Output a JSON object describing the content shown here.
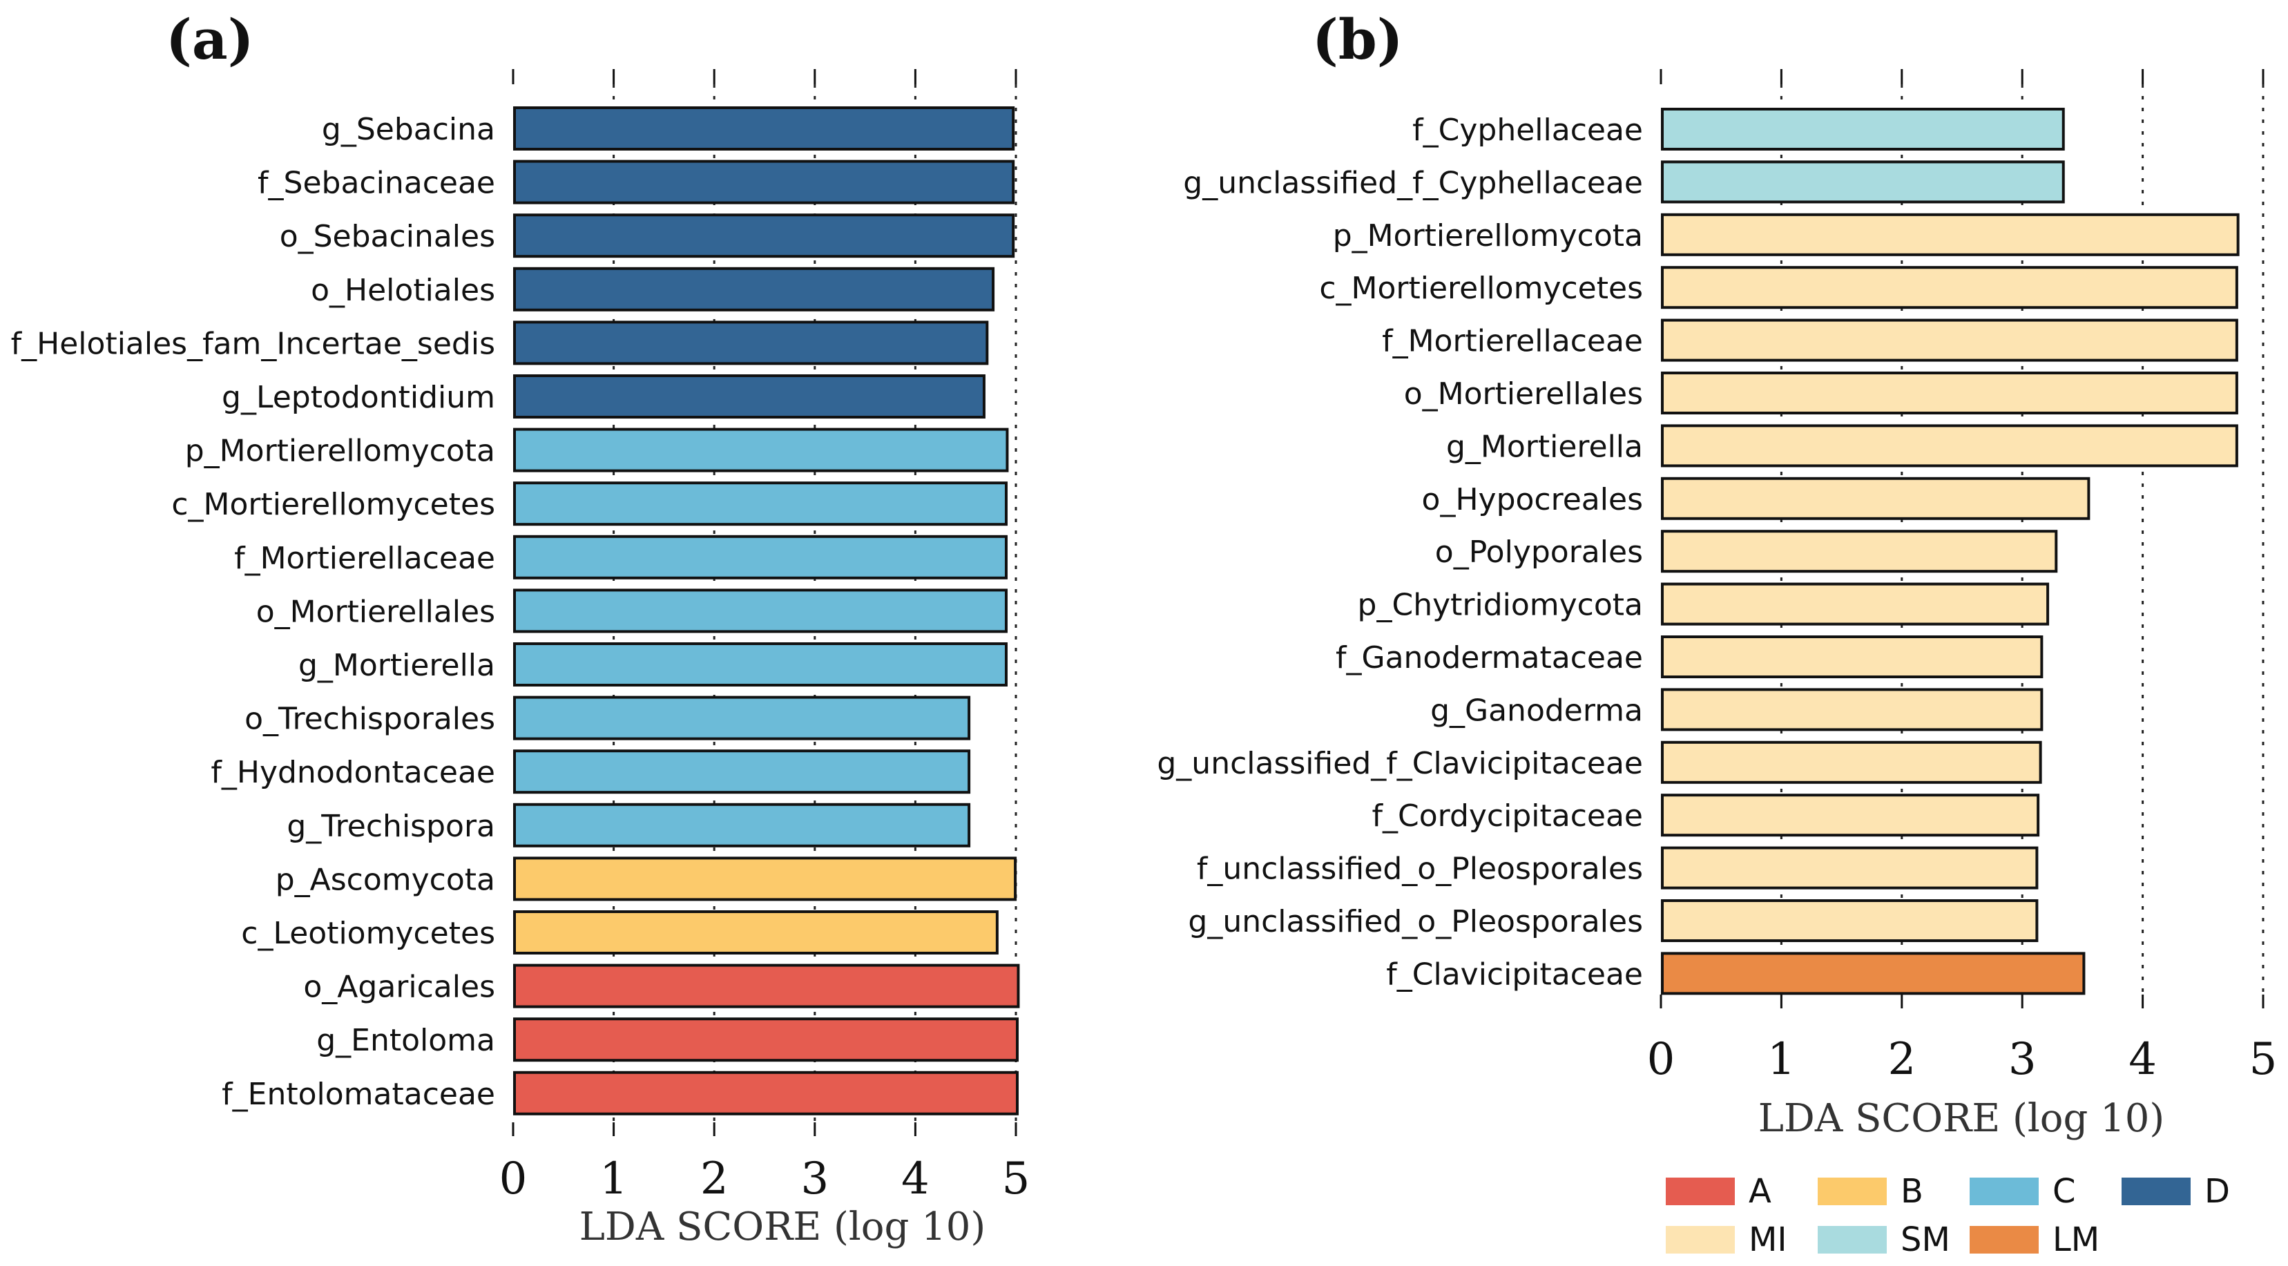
{
  "chart_data": [
    {
      "type": "bar",
      "orientation": "horizontal",
      "panel_label": "(a)",
      "xlabel": "LDA SCORE (log 10)",
      "xlim": [
        0,
        5
      ],
      "xticks": [
        "0",
        "1",
        "2",
        "3",
        "4",
        "5"
      ],
      "grid": "vertical dotted",
      "categories": [
        "g_Sebacina",
        "f_Sebacinaceae",
        "o_Sebacinales",
        "o_Helotiales",
        "f_Helotiales_fam_Incertae_sedis",
        "g_Leptodontidium",
        "p_Mortierellomycota",
        "c_Mortierellomycetes",
        "f_Mortierellaceae",
        "o_Mortierellales",
        "g_Mortierella",
        "o_Trechisporales",
        "f_Hydnodontaceae",
        "g_Trechispora",
        "p_Ascomycota",
        "c_Leotiomycetes",
        "o_Agaricales",
        "g_Entoloma",
        "f_Entolomataceae"
      ],
      "values": [
        4.96,
        4.96,
        4.96,
        4.76,
        4.7,
        4.67,
        4.9,
        4.89,
        4.89,
        4.89,
        4.89,
        4.52,
        4.52,
        4.52,
        4.98,
        4.8,
        5.01,
        5.0,
        5.0
      ],
      "groups": [
        "D",
        "D",
        "D",
        "D",
        "D",
        "D",
        "C",
        "C",
        "C",
        "C",
        "C",
        "C",
        "C",
        "C",
        "B",
        "B",
        "A",
        "A",
        "A"
      ]
    },
    {
      "type": "bar",
      "orientation": "horizontal",
      "panel_label": "(b)",
      "xlabel": "LDA SCORE (log 10)",
      "xlim": [
        0,
        5
      ],
      "xticks": [
        "0",
        "1",
        "2",
        "3",
        "4",
        "5"
      ],
      "grid": "vertical dotted",
      "categories": [
        "f_Cyphellaceae",
        "g_unclassified_f_Cyphellaceae",
        "p_Mortierellomycota",
        "c_Mortierellomycetes",
        "f_Mortierellaceae",
        "o_Mortierellales",
        "g_Mortierella",
        "o_Hypocreales",
        "o_Polyporales",
        "p_Chytridiomycota",
        "f_Ganodermataceae",
        "g_Ganoderma",
        "g_unclassified_f_Clavicipitaceae",
        "f_Cordycipitaceae",
        "f_unclassified_o_Pleosporales",
        "g_unclassified_o_Pleosporales",
        "f_Clavicipitaceae"
      ],
      "values": [
        3.33,
        3.33,
        4.78,
        4.77,
        4.77,
        4.77,
        4.77,
        3.54,
        3.27,
        3.2,
        3.15,
        3.15,
        3.14,
        3.12,
        3.11,
        3.11,
        3.5
      ],
      "groups": [
        "SM",
        "SM",
        "MI",
        "MI",
        "MI",
        "MI",
        "MI",
        "MI",
        "MI",
        "MI",
        "MI",
        "MI",
        "MI",
        "MI",
        "MI",
        "MI",
        "LM"
      ]
    }
  ],
  "legend": [
    {
      "label": "A",
      "color": "#e55c50"
    },
    {
      "label": "B",
      "color": "#fcca6b"
    },
    {
      "label": "C",
      "color": "#6cbbd8"
    },
    {
      "label": "D",
      "color": "#336594"
    },
    {
      "label": "MI",
      "color": "#fde4b2"
    },
    {
      "label": "SM",
      "color": "#a9dbdf"
    },
    {
      "label": "LM",
      "color": "#ea8a45"
    }
  ]
}
